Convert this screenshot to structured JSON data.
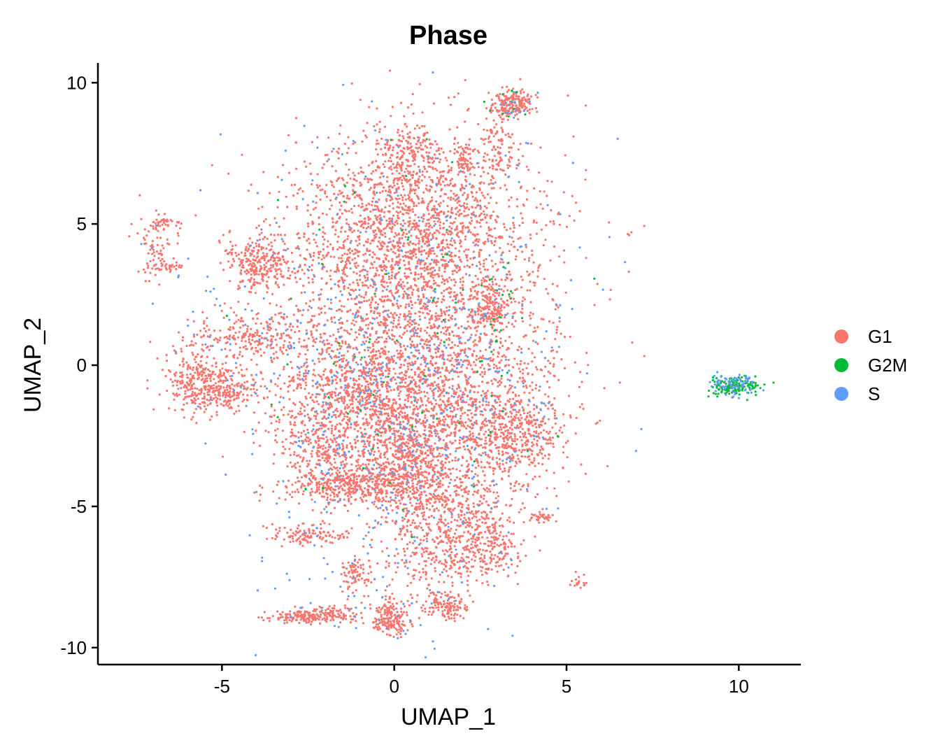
{
  "chart_data": {
    "type": "scatter",
    "title": "Phase",
    "xlabel": "UMAP_1",
    "ylabel": "UMAP_2",
    "xlim": [
      -8.6,
      11.8
    ],
    "ylim": [
      -10.6,
      10.7
    ],
    "xticks": [
      -5,
      0,
      5,
      10
    ],
    "yticks": [
      -10,
      -5,
      0,
      5,
      10
    ],
    "xtick_labels": [
      "-5",
      "0",
      "5",
      "10"
    ],
    "ytick_labels": [
      "-10",
      "-5",
      "0",
      "5",
      "10"
    ],
    "grid": false,
    "legend_position": "right",
    "series": [
      {
        "name": "G1",
        "color": "#F8766D",
        "clusters": [
          {
            "cx": 0.6,
            "cy": 2.5,
            "sx": 2.0,
            "sy": 2.4,
            "n": 2200
          },
          {
            "cx": 0.5,
            "cy": 5.5,
            "sx": 1.6,
            "sy": 1.4,
            "n": 900
          },
          {
            "cx": 0.4,
            "cy": 7.5,
            "sx": 0.4,
            "sy": 0.6,
            "n": 140
          },
          {
            "cx": -3.9,
            "cy": 3.7,
            "sx": 0.5,
            "sy": 0.5,
            "n": 260
          },
          {
            "cx": -4.0,
            "cy": 1.0,
            "sx": 1.0,
            "sy": 0.4,
            "n": 220
          },
          {
            "cx": -5.6,
            "cy": -0.6,
            "sx": 0.5,
            "sy": 0.6,
            "n": 320
          },
          {
            "cx": -4.7,
            "cy": -0.9,
            "sx": 0.4,
            "sy": 0.3,
            "n": 120
          },
          {
            "cx": -1.3,
            "cy": -1.2,
            "sx": 1.2,
            "sy": 1.0,
            "n": 600
          },
          {
            "cx": 1.0,
            "cy": -1.8,
            "sx": 1.8,
            "sy": 1.5,
            "n": 1300
          },
          {
            "cx": 3.4,
            "cy": -2.5,
            "sx": 0.7,
            "sy": 0.8,
            "n": 360
          },
          {
            "cx": -1.4,
            "cy": -4.3,
            "sx": 0.9,
            "sy": 0.3,
            "n": 340
          },
          {
            "cx": 0.2,
            "cy": -3.6,
            "sx": 0.7,
            "sy": 0.7,
            "n": 380
          },
          {
            "cx": -2.2,
            "cy": -3.0,
            "sx": 0.6,
            "sy": 0.5,
            "n": 180
          },
          {
            "cx": 1.5,
            "cy": -4.8,
            "sx": 1.0,
            "sy": 0.6,
            "n": 300
          },
          {
            "cx": 2.6,
            "cy": -6.3,
            "sx": 0.6,
            "sy": 0.6,
            "n": 280
          },
          {
            "cx": 1.0,
            "cy": -6.6,
            "sx": 0.7,
            "sy": 0.8,
            "n": 260
          },
          {
            "cx": -2.5,
            "cy": -6.0,
            "sx": 0.6,
            "sy": 0.2,
            "n": 120
          },
          {
            "cx": -1.1,
            "cy": -7.4,
            "sx": 0.2,
            "sy": 0.3,
            "n": 80
          },
          {
            "cx": -0.1,
            "cy": -9.0,
            "sx": 0.3,
            "sy": 0.3,
            "n": 170
          },
          {
            "cx": -2.7,
            "cy": -8.9,
            "sx": 0.5,
            "sy": 0.12,
            "n": 150
          },
          {
            "cx": -1.7,
            "cy": -8.8,
            "sx": 0.4,
            "sy": 0.15,
            "n": 80
          },
          {
            "cx": 1.5,
            "cy": -8.5,
            "sx": 0.3,
            "sy": 0.25,
            "n": 120
          },
          {
            "cx": 3.4,
            "cy": 9.3,
            "sx": 0.3,
            "sy": 0.25,
            "n": 180
          },
          {
            "cx": 3.0,
            "cy": 7.8,
            "sx": 0.25,
            "sy": 0.7,
            "n": 100
          },
          {
            "cx": 2.0,
            "cy": 7.2,
            "sx": 0.15,
            "sy": 0.3,
            "n": 60
          },
          {
            "cx": 2.8,
            "cy": 2.0,
            "sx": 0.25,
            "sy": 0.5,
            "n": 140
          },
          {
            "cx": 4.3,
            "cy": -5.4,
            "sx": 0.2,
            "sy": 0.08,
            "n": 35
          },
          {
            "cx": 5.4,
            "cy": -7.7,
            "sx": 0.12,
            "sy": 0.12,
            "n": 18
          },
          {
            "cx": -6.9,
            "cy": 4.2,
            "sx": 0.25,
            "sy": 0.55,
            "n": 70
          },
          {
            "cx": -6.6,
            "cy": 5.0,
            "sx": 0.3,
            "sy": 0.15,
            "n": 35
          },
          {
            "cx": -6.6,
            "cy": 3.5,
            "sx": 0.25,
            "sy": 0.08,
            "n": 30
          }
        ]
      },
      {
        "name": "G2M",
        "color": "#00BA38",
        "clusters": [
          {
            "cx": 9.9,
            "cy": -0.75,
            "sx": 0.35,
            "sy": 0.15,
            "n": 140
          },
          {
            "cx": 0.5,
            "cy": 0.5,
            "sx": 2.0,
            "sy": 3.5,
            "n": 80
          },
          {
            "cx": 2.8,
            "cy": 1.5,
            "sx": 0.3,
            "sy": 0.7,
            "n": 15
          },
          {
            "cx": 3.4,
            "cy": 9.2,
            "sx": 0.3,
            "sy": 0.3,
            "n": 10
          }
        ]
      },
      {
        "name": "S",
        "color": "#619CFF",
        "clusters": [
          {
            "cx": 9.8,
            "cy": -0.7,
            "sx": 0.35,
            "sy": 0.2,
            "n": 70
          },
          {
            "cx": 0.4,
            "cy": 0.0,
            "sx": 2.2,
            "sy": 4.0,
            "n": 650
          },
          {
            "cx": -3.5,
            "cy": 1.0,
            "sx": 1.5,
            "sy": 2.0,
            "n": 80
          },
          {
            "cx": 3.5,
            "cy": 9.1,
            "sx": 0.3,
            "sy": 0.3,
            "n": 15
          },
          {
            "cx": -1.0,
            "cy": -8.0,
            "sx": 1.5,
            "sy": 1.0,
            "n": 40
          }
        ]
      }
    ]
  }
}
